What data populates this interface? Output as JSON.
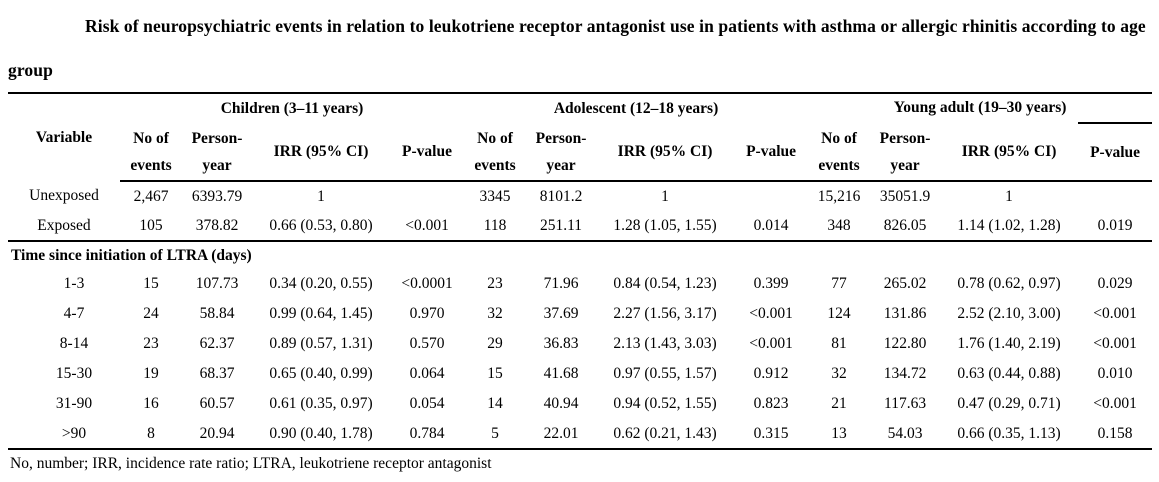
{
  "title": "Risk of neuropsychiatric events in relation to leukotriene receptor antagonist use in patients with asthma or allergic rhinitis according to age group",
  "table": {
    "variable_header": "Variable",
    "group_headers": [
      "Children (3–11 years)",
      "Adolescent (12–18 years)",
      "Young adult (19–30 years)"
    ],
    "sub_headers": [
      "No of events",
      "Person-year",
      "IRR (95% CI)",
      "P-value"
    ],
    "rows": [
      {
        "type": "data",
        "indent": false,
        "variable": "Unexposed",
        "cells": [
          "2,467",
          "6393.79",
          "1",
          "",
          "3345",
          "8101.2",
          "1",
          "",
          "15,216",
          "35051.9",
          "1",
          ""
        ]
      },
      {
        "type": "data",
        "indent": false,
        "variable": "Exposed",
        "cells": [
          "105",
          "378.82",
          "0.66 (0.53, 0.80)",
          "<0.001",
          "118",
          "251.11",
          "1.28 (1.05, 1.55)",
          "0.014",
          "348",
          "826.05",
          "1.14 (1.02, 1.28)",
          "0.019"
        ]
      },
      {
        "type": "section",
        "variable": "Time since initiation of LTRA (days)"
      },
      {
        "type": "data",
        "indent": true,
        "variable": "1-3",
        "cells": [
          "15",
          "107.73",
          "0.34 (0.20, 0.55)",
          "<0.0001",
          "23",
          "71.96",
          "0.84 (0.54, 1.23)",
          "0.399",
          "77",
          "265.02",
          "0.78 (0.62, 0.97)",
          "0.029"
        ]
      },
      {
        "type": "data",
        "indent": true,
        "variable": "4-7",
        "cells": [
          "24",
          "58.84",
          "0.99 (0.64, 1.45)",
          "0.970",
          "32",
          "37.69",
          "2.27 (1.56, 3.17)",
          "<0.001",
          "124",
          "131.86",
          "2.52 (2.10, 3.00)",
          "<0.001"
        ]
      },
      {
        "type": "data",
        "indent": true,
        "variable": "8-14",
        "cells": [
          "23",
          "62.37",
          "0.89 (0.57, 1.31)",
          "0.570",
          "29",
          "36.83",
          "2.13 (1.43, 3.03)",
          "<0.001",
          "81",
          "122.80",
          "1.76 (1.40, 2.19)",
          "<0.001"
        ]
      },
      {
        "type": "data",
        "indent": true,
        "variable": "15-30",
        "cells": [
          "19",
          "68.37",
          "0.65 (0.40, 0.99)",
          "0.064",
          "15",
          "41.68",
          "0.97 (0.55, 1.57)",
          "0.912",
          "32",
          "134.72",
          "0.63 (0.44, 0.88)",
          "0.010"
        ]
      },
      {
        "type": "data",
        "indent": true,
        "variable": "31-90",
        "cells": [
          "16",
          "60.57",
          "0.61 (0.35, 0.97)",
          "0.054",
          "14",
          "40.94",
          "0.94 (0.52, 1.55)",
          "0.823",
          "21",
          "117.63",
          "0.47 (0.29, 0.71)",
          "<0.001"
        ]
      },
      {
        "type": "data",
        "indent": true,
        "variable": ">90",
        "cells": [
          "8",
          "20.94",
          "0.90 (0.40, 1.78)",
          "0.784",
          "5",
          "22.01",
          "0.62 (0.21, 1.43)",
          "0.315",
          "13",
          "54.03",
          "0.66 (0.35, 1.13)",
          "0.158"
        ]
      }
    ],
    "footnote": "No, number; IRR, incidence rate ratio; LTRA, leukotriene receptor antagonist"
  },
  "colors": {
    "text": "#000000",
    "background": "#ffffff",
    "rule": "#000000"
  }
}
